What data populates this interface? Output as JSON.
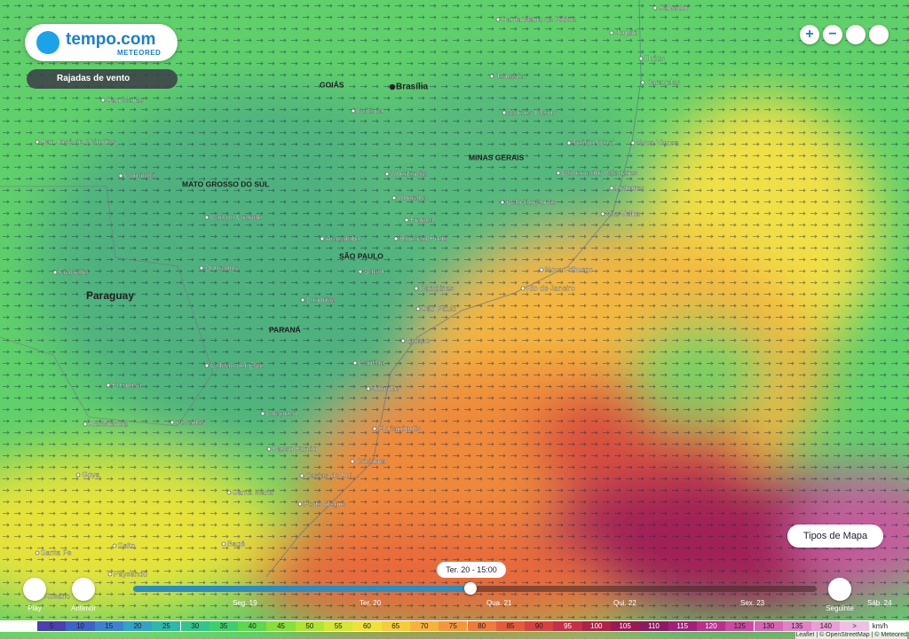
{
  "brand": {
    "name": "tempo.com",
    "sub": "METEORED"
  },
  "layer": "Rajadas de vento",
  "places": [
    "Salvador",
    "Santa Maria da Vitória",
    "Jequié",
    "Ilhéus",
    "Caravelas",
    "Januária",
    "GOIÁS",
    "Brasília",
    "Goiânia",
    "Montes Claros",
    "Teófilo Otoni",
    "Nova Viçosa",
    "San Matías",
    "San José de Chiquitos",
    "Corumbá",
    "MATO GROSSO DO SUL",
    "MINAS GERAIS",
    "Uberlândia",
    "Governador Valadares",
    "Uberaba",
    "Linhares",
    "Belo Horizonte",
    "Campo Grande",
    "Franca",
    "Vila Velha",
    "Araçatuba",
    "Ribeirão Preto",
    "SÃO PAULO",
    "Filadélfia",
    "Dourados",
    "Bauru",
    "Nova Friburgo",
    "Paraguay",
    "Campinas",
    "Rio de Janeiro",
    "Londrina",
    "São Paulo",
    "PARANÁ",
    "Iguape",
    "Curitiba",
    "Ciudad del Este",
    "Formosa",
    "Joinville",
    "Chapecó",
    "Resistencia",
    "Posadas",
    "Florianópolis",
    "Passo Fundo",
    "Criciúma",
    "Caxias do Sul",
    "Goya",
    "Santa Maria",
    "Porto Alegre",
    "Salto",
    "Bagé",
    "Santa Fe",
    "Paysandú",
    "Rosário"
  ],
  "map_type_button": "Tipos de Mapa",
  "timeline": {
    "current": "Ter. 20 - 15:00",
    "days": [
      "Seg. 19",
      "Ter. 20",
      "Qua. 21",
      "Qui. 22",
      "Sex. 23",
      "Sáb. 24"
    ],
    "play": "Play",
    "previous": "Anterior",
    "next": "Seguinte"
  },
  "legend": {
    "values": [
      5,
      10,
      15,
      20,
      25,
      30,
      35,
      40,
      45,
      50,
      55,
      60,
      65,
      70,
      75,
      80,
      85,
      90,
      95,
      100,
      105,
      110,
      115,
      120,
      125,
      130,
      135,
      140
    ],
    "overflow": ">",
    "unit": "km/h",
    "colors": [
      "#4b3fb0",
      "#3f62c8",
      "#3a83d2",
      "#33a2c8",
      "#2fb8a8",
      "#34c48a",
      "#3fcf6a",
      "#5cd84e",
      "#86e03c",
      "#b0e434",
      "#d4e636",
      "#eee23a",
      "#f6cc3a",
      "#f8b23a",
      "#f6963a",
      "#f07a3a",
      "#e65c3a",
      "#d8423e",
      "#c43044",
      "#ae2248",
      "#9a1a50",
      "#8c1a62",
      "#a02078",
      "#b8308e",
      "#cc48a2",
      "#d864b4",
      "#e082c4",
      "#e8a0d4",
      "#f0c0e4"
    ]
  },
  "attribution": "Leaflet | © OpenStreetMap | © Meteored"
}
